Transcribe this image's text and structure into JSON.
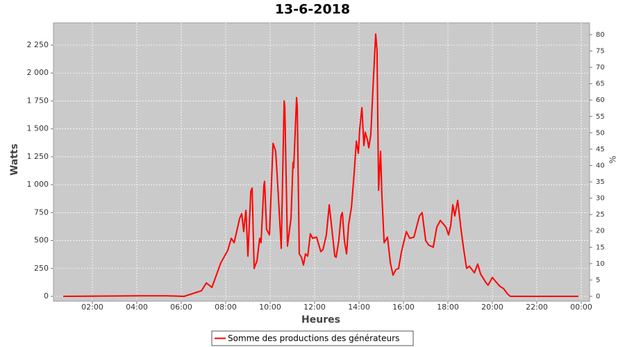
{
  "chart_data": {
    "type": "line",
    "title": "13-6-2018",
    "xlabel": "Heures",
    "ylabel": "Watts",
    "y2label": "%",
    "x": [
      0.69,
      4.09,
      5.34,
      6.13,
      6.91,
      7.13,
      7.38,
      7.78,
      8.09,
      8.25,
      8.38,
      8.63,
      8.72,
      8.81,
      8.91,
      9.0,
      9.13,
      9.19,
      9.28,
      9.41,
      9.53,
      9.59,
      9.72,
      9.75,
      9.84,
      9.97,
      10.13,
      10.25,
      10.34,
      10.5,
      10.63,
      10.66,
      10.78,
      10.94,
      11.03,
      11.06,
      11.19,
      11.22,
      11.31,
      11.41,
      11.5,
      11.59,
      11.69,
      11.81,
      11.91,
      12.09,
      12.28,
      12.38,
      12.53,
      12.66,
      12.78,
      12.91,
      12.97,
      13.09,
      13.19,
      13.25,
      13.34,
      13.44,
      13.53,
      13.66,
      13.78,
      13.88,
      13.97,
      14.03,
      14.13,
      14.22,
      14.28,
      14.38,
      14.44,
      14.53,
      14.66,
      14.75,
      14.81,
      14.88,
      14.97,
      15.03,
      15.13,
      15.28,
      15.41,
      15.53,
      15.66,
      15.78,
      15.91,
      16.13,
      16.28,
      16.47,
      16.72,
      16.84,
      17.0,
      17.13,
      17.34,
      17.5,
      17.66,
      17.91,
      18.03,
      18.13,
      18.22,
      18.31,
      18.44,
      18.59,
      18.69,
      18.84,
      18.97,
      19.19,
      19.34,
      19.47,
      19.72,
      19.81,
      20.0,
      20.16,
      20.34,
      20.5,
      20.69,
      20.81,
      23.88
    ],
    "series": [
      {
        "name": "Somme des productions des  générateurs",
        "color": "#ff0000",
        "values": [
          0,
          5,
          5,
          0,
          50,
          120,
          80,
          300,
          410,
          520,
          480,
          700,
          740,
          580,
          770,
          360,
          940,
          970,
          250,
          320,
          520,
          480,
          1000,
          1030,
          600,
          550,
          1370,
          1300,
          1000,
          430,
          1750,
          1700,
          450,
          700,
          1200,
          1150,
          1780,
          1700,
          380,
          350,
          280,
          380,
          360,
          560,
          520,
          530,
          400,
          420,
          550,
          820,
          600,
          360,
          350,
          500,
          720,
          750,
          500,
          380,
          640,
          800,
          1100,
          1390,
          1280,
          1500,
          1690,
          1350,
          1470,
          1400,
          1330,
          1450,
          2000,
          2350,
          2200,
          950,
          1300,
          900,
          480,
          530,
          300,
          190,
          240,
          250,
          400,
          580,
          520,
          530,
          720,
          750,
          500,
          460,
          440,
          620,
          680,
          620,
          550,
          640,
          820,
          720,
          860,
          600,
          450,
          250,
          270,
          210,
          290,
          200,
          120,
          100,
          170,
          130,
          90,
          70,
          20,
          0,
          0
        ]
      }
    ],
    "xlim": [
      0.25,
      24.375
    ],
    "xticks": [
      {
        "value": 2,
        "label": "02:00"
      },
      {
        "value": 4,
        "label": "04:00"
      },
      {
        "value": 6,
        "label": "06:00"
      },
      {
        "value": 8,
        "label": "08:00"
      },
      {
        "value": 10,
        "label": "10:00"
      },
      {
        "value": 12,
        "label": "12:00"
      },
      {
        "value": 14,
        "label": "14:00"
      },
      {
        "value": 16,
        "label": "16:00"
      },
      {
        "value": 18,
        "label": "18:00"
      },
      {
        "value": 20,
        "label": "20:00"
      },
      {
        "value": 22,
        "label": "22:00"
      },
      {
        "value": 24,
        "label": "00:00"
      }
    ],
    "ylim": [
      -43.5,
      2449
    ],
    "yticks": [
      0,
      250,
      500,
      750,
      {
        "value": 1000,
        "label": "1 000"
      },
      {
        "value": 1250,
        "label": "1 250"
      },
      {
        "value": 1500,
        "label": "1 500"
      },
      {
        "value": 1750,
        "label": "1 750"
      },
      {
        "value": 2000,
        "label": "2 000"
      },
      {
        "value": 2250,
        "label": "2 250"
      }
    ],
    "y2lim": [
      -1.49,
      83.6
    ],
    "y2ticks": [
      0,
      5,
      10,
      15,
      20,
      25,
      30,
      35,
      40,
      45,
      50,
      55,
      60,
      65,
      70,
      75,
      80
    ],
    "grid": true,
    "legend": "bottom"
  }
}
